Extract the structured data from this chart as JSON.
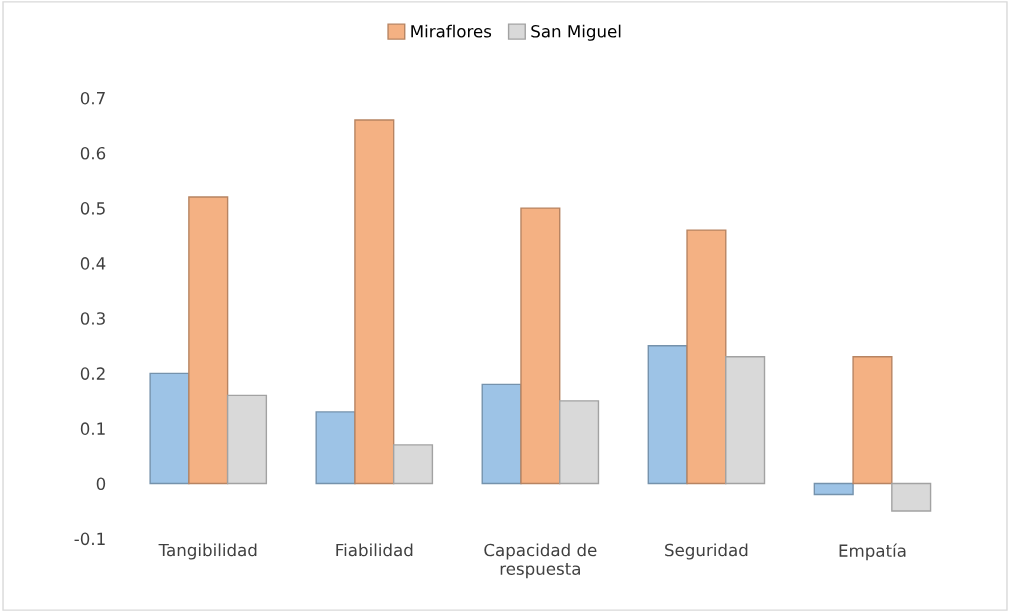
{
  "chart_data": {
    "type": "bar",
    "categories": [
      "Tangibilidad",
      "Fiabilidad",
      "Capacidad de\nrespuesta",
      "Seguridad",
      "Empatía"
    ],
    "series": [
      {
        "color": "#9dc3e6",
        "values": [
          0.2,
          0.13,
          0.18,
          0.25,
          -0.02
        ]
      },
      {
        "name": "Miraflores",
        "color": "#f4b183",
        "values": [
          0.52,
          0.66,
          0.5,
          0.46,
          0.23
        ]
      },
      {
        "name": "San Miguel",
        "color": "#d9d9d9",
        "values": [
          0.16,
          0.07,
          0.15,
          0.23,
          -0.05
        ]
      }
    ],
    "ylim": [
      -0.1,
      0.7
    ],
    "yticks": [
      -0.1,
      0,
      0.1,
      0.2,
      0.3,
      0.4,
      0.5,
      0.6,
      0.7
    ],
    "grid": false,
    "legend": "top"
  }
}
